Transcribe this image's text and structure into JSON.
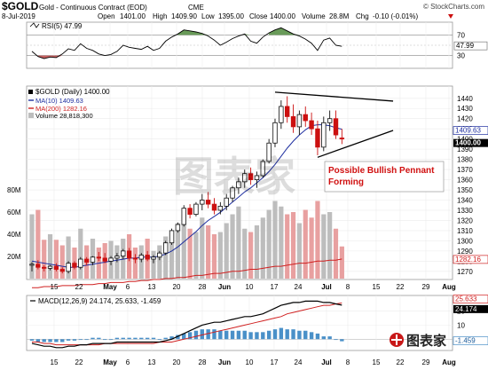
{
  "header": {
    "symbol": "$GOLD",
    "description": "Gold - Continuous Contract (EOD)",
    "exchange": "CME",
    "copyright": "© StockCharts.com",
    "date": "8-Jul-2019",
    "open_label": "Open",
    "open": "1401.00",
    "high_label": "High",
    "high": "1409.90",
    "low_label": "Low",
    "low": "1395.00",
    "close_label": "Close",
    "close": "1400.00",
    "volume_label": "Volume",
    "volume": "28.8M",
    "chg_label": "Chg",
    "chg": "-0.10 (-0.01%)"
  },
  "colors": {
    "up": "#111111",
    "down": "#cc1010",
    "ma10": "#1f2fa0",
    "ma200": "#d02020",
    "volume": "#bdbdbd",
    "rsi_fill": "#4f8a3c",
    "macd_hist": "#4a90c8",
    "annotation": "#d01010"
  },
  "rsi": {
    "label": "RSI(5) 47.99",
    "levels": [
      "70",
      "50",
      "30"
    ],
    "badge": "47.99"
  },
  "price": {
    "legend_title": "$GOLD (Daily) 1400.00",
    "legend_ma10": "MA(10) 1409.63",
    "legend_ma200": "MA(200) 1282.16",
    "legend_volume": "Volume 28,818,300",
    "badge_ma10": "1409.63",
    "badge_close": "1400.00",
    "badge_ma200": "1282.16",
    "annotation": [
      "Possible Bullish Pennant",
      "Forming"
    ],
    "watermark": "图表家"
  },
  "macd": {
    "label": "MACD(12,26,9) 24.174, 25.633, -1.459",
    "badge_macd": "24.174",
    "badge_signal": "25.633",
    "badge_hist": "-1.459",
    "logo": "图表家"
  },
  "chart_data": {
    "type": "candlestick",
    "x_tick_labels": [
      "15",
      "22",
      "May",
      "6",
      "13",
      "20",
      "28",
      "Jun",
      "10",
      "17",
      "24",
      "Jul",
      "8",
      "15",
      "22",
      "29",
      "Aug"
    ],
    "candles": [
      [
        1276,
        1279,
        1270,
        1277
      ],
      [
        1277,
        1281,
        1272,
        1274
      ],
      [
        1274,
        1276,
        1270,
        1273
      ],
      [
        1273,
        1276,
        1271,
        1275
      ],
      [
        1275,
        1278,
        1270,
        1272
      ],
      [
        1272,
        1274,
        1268,
        1270
      ],
      [
        1270,
        1280,
        1268,
        1278
      ],
      [
        1278,
        1280,
        1272,
        1274
      ],
      [
        1274,
        1284,
        1272,
        1282
      ],
      [
        1282,
        1284,
        1276,
        1279
      ],
      [
        1279,
        1285,
        1276,
        1284
      ],
      [
        1284,
        1289,
        1280,
        1283
      ],
      [
        1283,
        1288,
        1278,
        1280
      ],
      [
        1280,
        1285,
        1276,
        1283
      ],
      [
        1283,
        1288,
        1279,
        1285
      ],
      [
        1285,
        1292,
        1282,
        1290
      ],
      [
        1290,
        1293,
        1280,
        1283
      ],
      [
        1283,
        1287,
        1278,
        1282
      ],
      [
        1282,
        1288,
        1279,
        1286
      ],
      [
        1286,
        1290,
        1280,
        1282
      ],
      [
        1282,
        1286,
        1278,
        1284
      ],
      [
        1284,
        1290,
        1281,
        1288
      ],
      [
        1288,
        1300,
        1286,
        1298
      ],
      [
        1298,
        1312,
        1296,
        1310
      ],
      [
        1310,
        1318,
        1308,
        1316
      ],
      [
        1316,
        1335,
        1314,
        1332
      ],
      [
        1332,
        1336,
        1322,
        1326
      ],
      [
        1326,
        1338,
        1324,
        1336
      ],
      [
        1336,
        1346,
        1330,
        1340
      ],
      [
        1340,
        1348,
        1332,
        1336
      ],
      [
        1336,
        1342,
        1326,
        1330
      ],
      [
        1330,
        1338,
        1326,
        1334
      ],
      [
        1334,
        1346,
        1330,
        1342
      ],
      [
        1342,
        1354,
        1338,
        1352
      ],
      [
        1352,
        1362,
        1346,
        1358
      ],
      [
        1358,
        1370,
        1352,
        1366
      ],
      [
        1366,
        1372,
        1355,
        1360
      ],
      [
        1360,
        1368,
        1352,
        1364
      ],
      [
        1364,
        1380,
        1362,
        1378
      ],
      [
        1378,
        1400,
        1376,
        1396
      ],
      [
        1396,
        1420,
        1392,
        1416
      ],
      [
        1416,
        1438,
        1410,
        1432
      ],
      [
        1432,
        1442,
        1416,
        1422
      ],
      [
        1422,
        1434,
        1406,
        1412
      ],
      [
        1412,
        1428,
        1404,
        1424
      ],
      [
        1424,
        1432,
        1412,
        1418
      ],
      [
        1418,
        1426,
        1404,
        1410
      ],
      [
        1410,
        1418,
        1384,
        1392
      ],
      [
        1392,
        1422,
        1388,
        1416
      ],
      [
        1416,
        1428,
        1408,
        1420
      ],
      [
        1420,
        1428,
        1400,
        1404
      ],
      [
        1401,
        1409.9,
        1395,
        1400
      ]
    ],
    "volume_millions": [
      58,
      62,
      35,
      40,
      35,
      30,
      38,
      28,
      45,
      30,
      36,
      28,
      32,
      34,
      30,
      36,
      40,
      28,
      30,
      36,
      25,
      30,
      38,
      42,
      50,
      58,
      45,
      42,
      55,
      48,
      40,
      42,
      50,
      58,
      65,
      45,
      42,
      48,
      55,
      62,
      70,
      65,
      58,
      60,
      50,
      62,
      55,
      70,
      58,
      60,
      45,
      29
    ],
    "ma10": [
      1280,
      1279,
      1278,
      1277,
      1276,
      1275,
      1274,
      1274,
      1275,
      1276,
      1277,
      1278,
      1279,
      1280,
      1281,
      1282,
      1283,
      1283,
      1284,
      1284,
      1284,
      1285,
      1287,
      1290,
      1294,
      1299,
      1304,
      1309,
      1315,
      1320,
      1324,
      1328,
      1333,
      1338,
      1343,
      1348,
      1352,
      1357,
      1362,
      1368,
      1375,
      1383,
      1391,
      1398,
      1404,
      1409,
      1413,
      1414,
      1414,
      1413,
      1411,
      1409.63
    ],
    "ma200": [
      1254,
      1254,
      1255,
      1255,
      1255,
      1256,
      1256,
      1256,
      1257,
      1257,
      1257,
      1258,
      1258,
      1259,
      1259,
      1259,
      1260,
      1260,
      1261,
      1261,
      1262,
      1262,
      1263,
      1263,
      1264,
      1264,
      1265,
      1266,
      1266,
      1267,
      1268,
      1268,
      1269,
      1270,
      1270,
      1271,
      1272,
      1272,
      1273,
      1274,
      1275,
      1275,
      1276,
      1277,
      1278,
      1278,
      1279,
      1280,
      1280,
      1281,
      1281,
      1282.16
    ],
    "rsi": [
      38,
      28,
      24,
      27,
      26,
      33,
      43,
      40,
      53,
      44,
      40,
      33,
      30,
      32,
      38,
      50,
      46,
      44,
      42,
      48,
      40,
      44,
      58,
      66,
      72,
      80,
      78,
      76,
      73,
      68,
      60,
      50,
      56,
      63,
      68,
      72,
      58,
      54,
      66,
      74,
      80,
      84,
      78,
      72,
      68,
      62,
      54,
      40,
      60,
      64,
      50,
      47.99
    ],
    "macd": [
      -3,
      -4,
      -5,
      -5,
      -6,
      -6,
      -5,
      -5,
      -4,
      -4,
      -3,
      -3,
      -3,
      -3,
      -2,
      -2,
      -2,
      -2,
      -2,
      -2,
      -2,
      -2,
      -1,
      0,
      2,
      4,
      6,
      8,
      10,
      11,
      12,
      12,
      13,
      14,
      15,
      16,
      16,
      17,
      18,
      20,
      22,
      24,
      25,
      26,
      26,
      27,
      27,
      27,
      26,
      26,
      25,
      24.174
    ],
    "macd_signal": [
      -2,
      -2,
      -3,
      -3,
      -4,
      -4,
      -4,
      -4,
      -4,
      -4,
      -4,
      -4,
      -3,
      -3,
      -3,
      -3,
      -3,
      -3,
      -3,
      -3,
      -3,
      -2,
      -2,
      -2,
      -1,
      0,
      1,
      2,
      3,
      4,
      5,
      6,
      7,
      8,
      9,
      10,
      11,
      12,
      13,
      14,
      15,
      16,
      18,
      19,
      20,
      21,
      22,
      23,
      24,
      24,
      25,
      25.633
    ],
    "pennant": {
      "upper": [
        [
          40,
          1446
        ],
        [
          53,
          1439
        ]
      ],
      "lower": [
        [
          47,
          1382
        ],
        [
          53,
          1398
        ]
      ]
    },
    "price_axis": {
      "min": 1262,
      "max": 1452,
      "ticks": [
        1270,
        1280,
        1290,
        1300,
        1310,
        1320,
        1330,
        1340,
        1350,
        1360,
        1370,
        1380,
        1390,
        1400,
        1410,
        1420,
        1430,
        1440
      ]
    },
    "volume_axis": {
      "max_millions": 120,
      "ticks": [
        "20M",
        "40M",
        "60M",
        "80M"
      ]
    },
    "rsi_axis": {
      "min": 5,
      "max": 95,
      "ticks": [
        10,
        30,
        50,
        70,
        90
      ]
    },
    "macd_axis": {
      "min": -8,
      "max": 31,
      "ticks": [
        0,
        10,
        20
      ]
    }
  }
}
